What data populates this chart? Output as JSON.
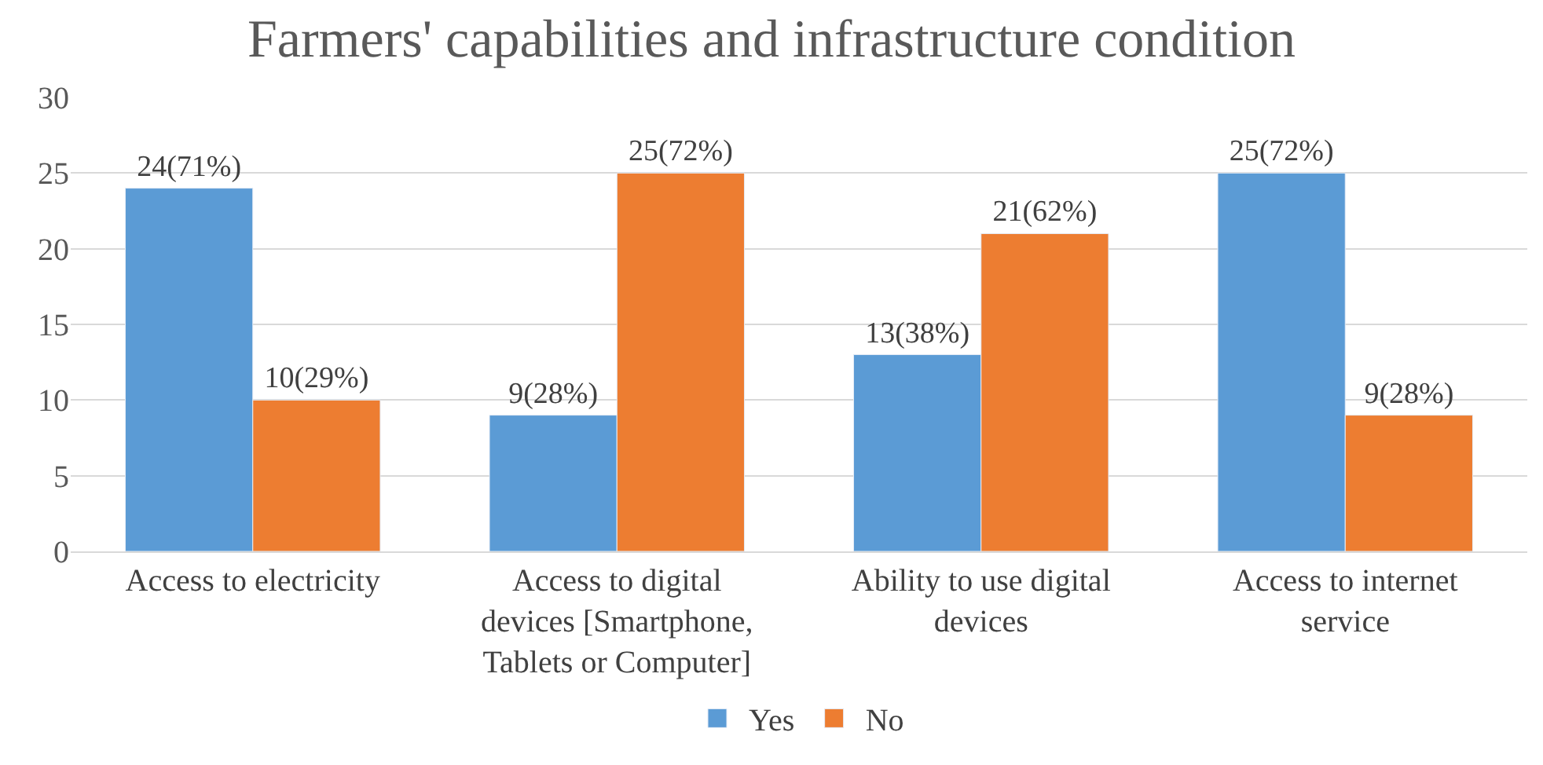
{
  "chart_data": {
    "type": "bar",
    "title": "Farmers' capabilities and infrastructure condition",
    "categories": [
      "Access to electricity",
      "Access to digital\ndevices [Smartphone,\nTablets or Computer]",
      "Ability to use digital\ndevices",
      "Access to internet\nservice"
    ],
    "series": [
      {
        "name": "Yes",
        "color": "#5b9bd5",
        "values": [
          24,
          9,
          13,
          25
        ],
        "value_labels": [
          "24(71%)",
          "9(28%)",
          "13(38%)",
          "25(72%)"
        ]
      },
      {
        "name": "No",
        "color": "#ed7d31",
        "values": [
          10,
          25,
          21,
          9
        ],
        "value_labels": [
          "10(29%)",
          "25(72%)",
          "21(62%)",
          "9(28%)"
        ]
      }
    ],
    "ylim": [
      0,
      30
    ],
    "yticks": [
      0,
      5,
      10,
      15,
      20,
      25,
      30
    ],
    "grid": "y",
    "legend": "bottom"
  }
}
